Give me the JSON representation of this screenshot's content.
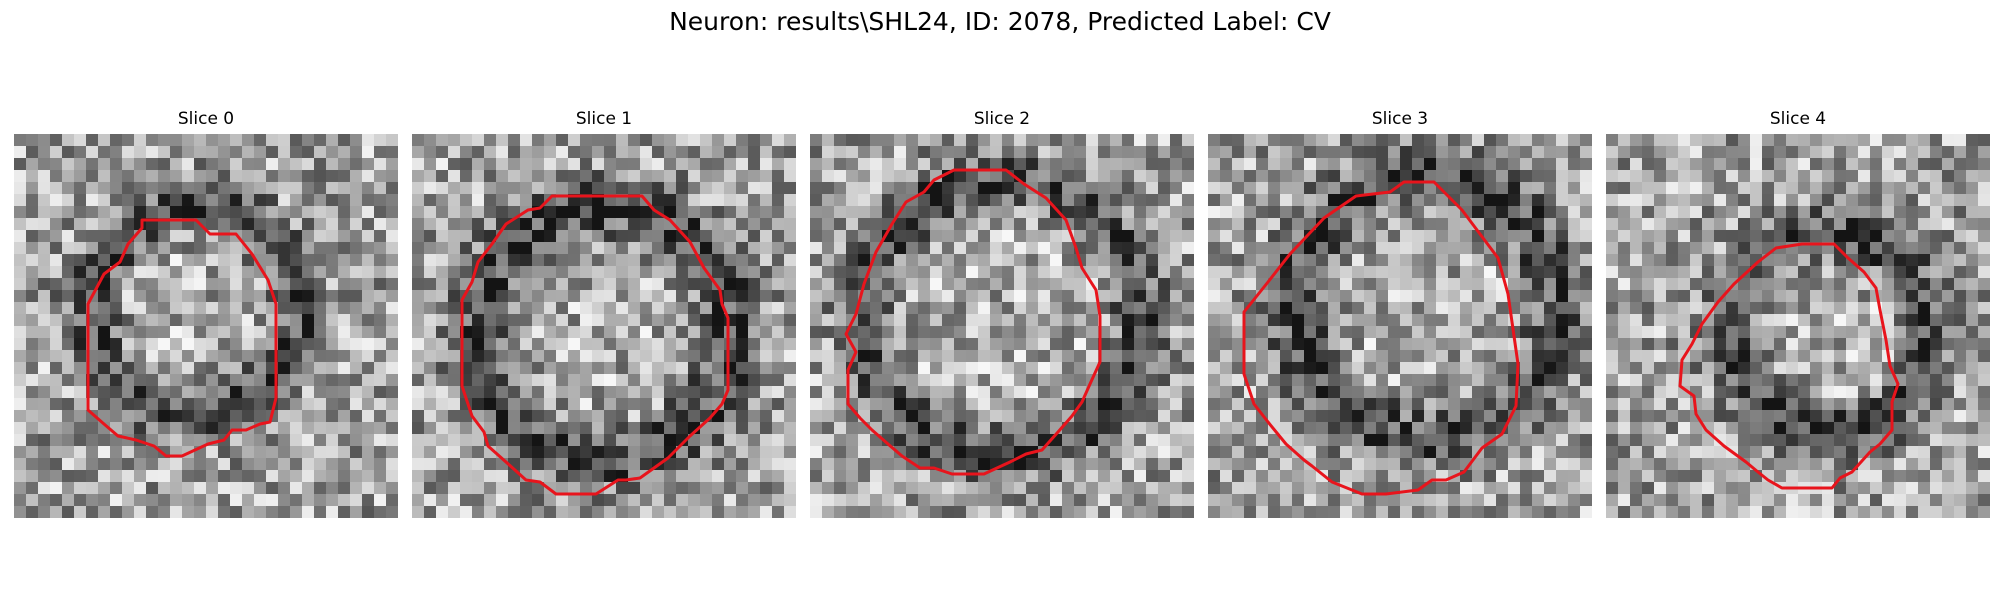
{
  "figure": {
    "title": "Neuron: results\\SHL24, ID: 2078, Predicted Label: CV"
  },
  "panels": [
    {
      "title": "Slice 0"
    },
    {
      "title": "Slice 1"
    },
    {
      "title": "Slice 2"
    },
    {
      "title": "Slice 3"
    },
    {
      "title": "Slice 4"
    }
  ],
  "colors": {
    "contour": "#e8141c",
    "background": "#ffffff"
  },
  "image_grid": 32
}
